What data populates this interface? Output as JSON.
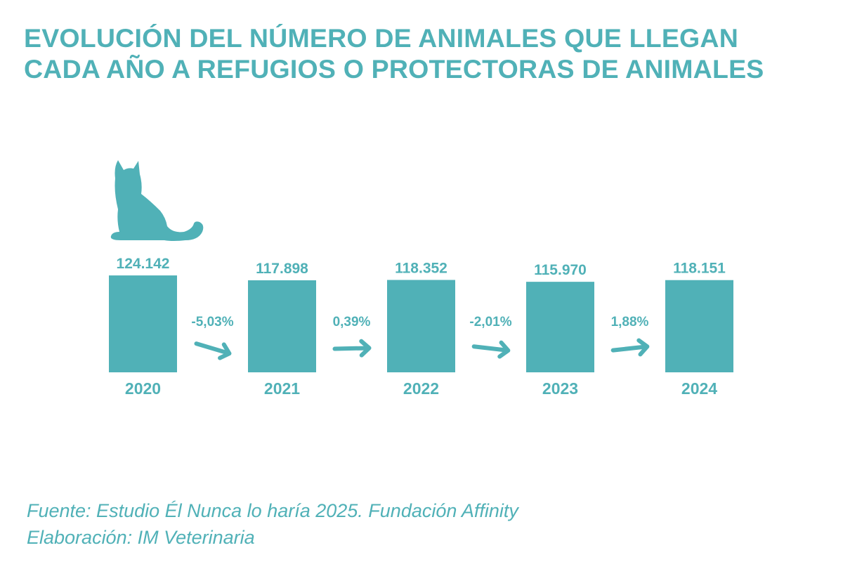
{
  "title_lines": [
    "EVOLUCIÓN DEL NÚMERO DE ANIMALES QUE LLEGAN",
    "CADA AÑO A REFUGIOS O PROTECTORAS DE ANIMALES"
  ],
  "footer": {
    "source": "Fuente: Estudio Él Nunca lo haría 2025. Fundación Affinity",
    "credit": "Elaboración: IM Veterinaria"
  },
  "icon": "cat-icon",
  "colors": {
    "accent": "#50b1b7",
    "background": "#ffffff"
  },
  "chart_data": {
    "type": "bar",
    "title": "EVOLUCIÓN DEL NÚMERO DE ANIMALES QUE LLEGAN CADA AÑO A REFUGIOS O PROTECTORAS DE ANIMALES",
    "categories": [
      "2020",
      "2021",
      "2022",
      "2023",
      "2024"
    ],
    "values": [
      124142,
      117898,
      118352,
      115970,
      118151
    ],
    "value_labels": [
      "124.142",
      "117.898",
      "118.352",
      "115.970",
      "118.151"
    ],
    "changes": [
      {
        "label": "-5,03%",
        "value": -5.03,
        "direction": "down"
      },
      {
        "label": "0,39%",
        "value": 0.39,
        "direction": "up"
      },
      {
        "label": "-2,01%",
        "value": -2.01,
        "direction": "down"
      },
      {
        "label": "1,88%",
        "value": 1.88,
        "direction": "up"
      }
    ],
    "xlabel": "",
    "ylabel": "",
    "grid": false,
    "legend": "none"
  }
}
